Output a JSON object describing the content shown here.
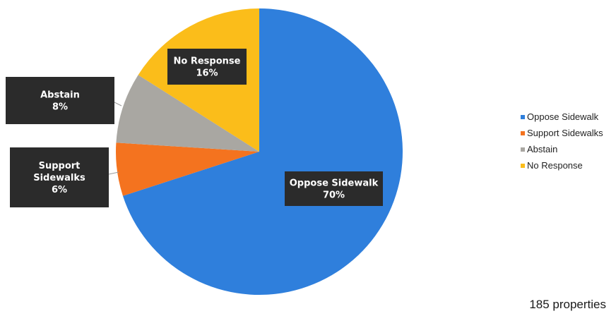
{
  "chart_data": {
    "type": "pie",
    "title": "",
    "slices": [
      {
        "label": "Oppose Sidewalk",
        "value": 70,
        "display": "70%",
        "color": "#2f7fdc"
      },
      {
        "label": "Support Sidewalks",
        "value": 6,
        "display": "6%",
        "color": "#f4731f"
      },
      {
        "label": "Abstain",
        "value": 8,
        "display": "8%",
        "color": "#a9a7a2"
      },
      {
        "label": "No Response",
        "value": 16,
        "display": "16%",
        "color": "#fbbd1a"
      }
    ],
    "callout_labels": [
      [
        "Oppose Sidewalk",
        "70%"
      ],
      [
        "Support",
        "Sidewalks",
        "6%"
      ],
      [
        "Abstain",
        "8%"
      ],
      [
        "No Response",
        "16%"
      ]
    ],
    "legend": {
      "position": "right",
      "entries": [
        "Oppose Sidewalk",
        "Support Sidewalks",
        "Abstain",
        "No Response"
      ]
    },
    "callout_bg": "#2b2b2b"
  },
  "footer": {
    "note": "185 properties"
  }
}
